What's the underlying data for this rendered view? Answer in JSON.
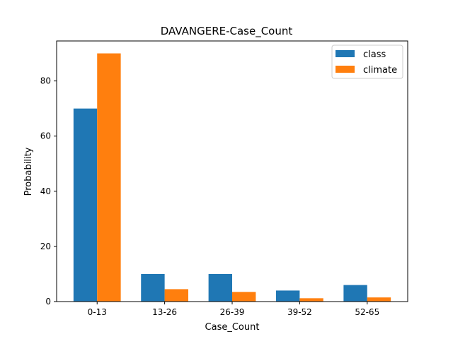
{
  "chart_data": {
    "type": "bar",
    "title": "DAVANGERE-Case_Count",
    "xlabel": "Case_Count",
    "ylabel": "Probability",
    "categories": [
      "0-13",
      "13-26",
      "26-39",
      "39-52",
      "52-65"
    ],
    "series": [
      {
        "name": "class",
        "values": [
          70,
          10,
          10,
          4,
          6
        ],
        "color": "#1f77b4"
      },
      {
        "name": "climate",
        "values": [
          90,
          4.5,
          3.5,
          1.2,
          1.5
        ],
        "color": "#ff7f0e"
      }
    ],
    "ylim": [
      0,
      94.5
    ],
    "yticks": [
      0,
      20,
      40,
      60,
      80
    ],
    "grid": false,
    "legend_position": "top-right"
  }
}
